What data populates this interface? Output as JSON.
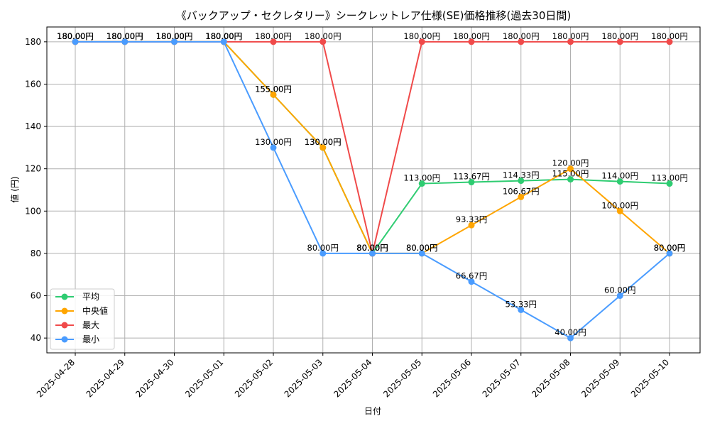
{
  "chart_data": {
    "type": "line",
    "title": "《バックアップ・セクレタリー》シークレットレア仕様(SE)価格推移(過去30日間)",
    "xlabel": "日付",
    "ylabel": "値 (円)",
    "categories": [
      "2025-04-28",
      "2025-04-29",
      "2025-04-30",
      "2025-05-01",
      "2025-05-02",
      "2025-05-03",
      "2025-05-04",
      "2025-05-05",
      "2025-05-06",
      "2025-05-07",
      "2025-05-08",
      "2025-05-09",
      "2025-05-10"
    ],
    "ylim": [
      33,
      187
    ],
    "yticks": [
      40,
      60,
      80,
      100,
      120,
      140,
      160,
      180
    ],
    "grid": true,
    "legend_position": "lower-left",
    "value_suffix": "円",
    "series": [
      {
        "name": "平均",
        "color": "#2ecc71",
        "values": [
          180,
          180,
          180,
          180,
          155,
          130,
          80,
          113,
          113.67,
          114.33,
          115,
          114,
          113
        ]
      },
      {
        "name": "中央値",
        "color": "#ffa500",
        "values": [
          180,
          180,
          180,
          180,
          155,
          130,
          80,
          80,
          93.33,
          106.67,
          120,
          100,
          80
        ]
      },
      {
        "name": "最大",
        "color": "#f04a4a",
        "values": [
          180,
          180,
          180,
          180,
          180,
          180,
          80,
          180,
          180,
          180,
          180,
          180,
          180
        ]
      },
      {
        "name": "最小",
        "color": "#4a9cff",
        "values": [
          180,
          180,
          180,
          180,
          130,
          80,
          80,
          80,
          66.67,
          53.33,
          40,
          60,
          80
        ]
      }
    ]
  }
}
